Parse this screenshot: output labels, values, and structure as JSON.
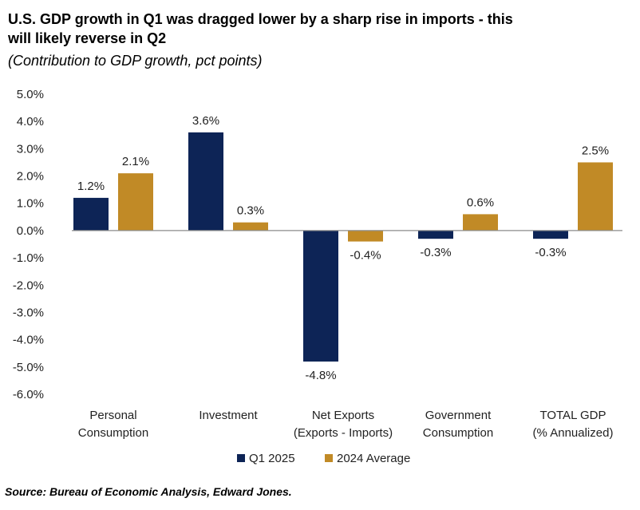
{
  "chart_data": {
    "type": "bar",
    "title_lines": [
      "U.S. GDP growth in Q1 was dragged lower by a sharp rise in imports - this",
      "will likely reverse in Q2"
    ],
    "subtitle": "(Contribution to GDP growth, pct points)",
    "categories": [
      [
        "Personal",
        "Consumption"
      ],
      [
        "Investment"
      ],
      [
        "Net Exports",
        "(Exports - Imports)"
      ],
      [
        "Government",
        "Consumption"
      ],
      [
        "TOTAL GDP",
        "(% Annualized)"
      ]
    ],
    "series": [
      {
        "name": "Q1 2025",
        "color": "#0d2456",
        "values": [
          1.2,
          3.6,
          -4.8,
          -0.3,
          -0.3
        ],
        "labels": [
          "1.2%",
          "3.6%",
          "-4.8%",
          "-0.3%",
          "-0.3%"
        ]
      },
      {
        "name": "2024 Average",
        "color": "#c18a26",
        "values": [
          2.1,
          0.3,
          -0.4,
          0.6,
          2.5
        ],
        "labels": [
          "2.1%",
          "0.3%",
          "-0.4%",
          "0.6%",
          "2.5%"
        ]
      }
    ],
    "ylim": [
      -6,
      5
    ],
    "yticks": [
      5,
      4,
      3,
      2,
      1,
      0,
      -1,
      -2,
      -3,
      -4,
      -5,
      -6
    ],
    "ytick_labels": [
      "5.0%",
      "4.0%",
      "3.0%",
      "2.0%",
      "1.0%",
      "0.0%",
      "-1.0%",
      "-2.0%",
      "-3.0%",
      "-4.0%",
      "-5.0%",
      "-6.0%"
    ],
    "legend_position": "bottom",
    "grid": false
  },
  "source": "Source: Bureau of Economic Analysis, Edward Jones."
}
